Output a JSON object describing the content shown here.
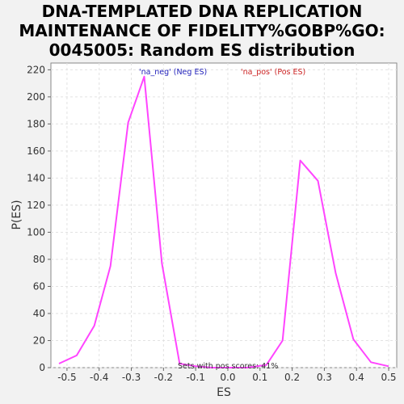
{
  "chart_data": {
    "type": "line",
    "title": "DNA-TEMPLATED DNA REPLICATION\nMAINTENANCE OF FIDELITY%GOBP%GO:\n0045005: Random ES distribution",
    "xlabel": "ES",
    "ylabel": "P(ES)",
    "xlim": [
      -0.55,
      0.525
    ],
    "ylim": [
      0,
      225
    ],
    "xticks": [
      -0.5,
      -0.4,
      -0.3,
      -0.2,
      -0.1,
      0.0,
      0.1,
      0.2,
      0.3,
      0.4,
      0.5
    ],
    "xtick_labels": [
      "-0.5",
      "-0.4",
      "-0.3",
      "-0.2",
      "-0.1",
      "0.0",
      "0.1",
      "0.2",
      "0.3",
      "0.4",
      "0.5"
    ],
    "yticks": [
      0,
      20,
      40,
      60,
      80,
      100,
      120,
      140,
      160,
      180,
      200,
      220
    ],
    "ytick_labels": [
      "0",
      "20",
      "40",
      "60",
      "80",
      "100",
      "120",
      "140",
      "160",
      "180",
      "200",
      "220"
    ],
    "grid": true,
    "series": [
      {
        "name": "",
        "color": "#ff44ff",
        "x": [
          -0.525,
          -0.47,
          -0.415,
          -0.365,
          -0.31,
          -0.26,
          -0.205,
          -0.15,
          -0.1,
          -0.05,
          0.0,
          0.06,
          0.12,
          0.17,
          0.225,
          0.28,
          0.335,
          0.39,
          0.445,
          0.5
        ],
        "y": [
          3,
          9,
          31,
          75,
          181,
          215,
          77,
          3,
          1,
          0,
          0,
          0,
          2,
          20,
          153,
          138,
          70,
          21,
          4,
          1
        ]
      }
    ],
    "legend": [
      {
        "label": "'na_neg' (Neg ES)",
        "color": "#2222bb"
      },
      {
        "label": "'na_pos' (Pos ES)",
        "color": "#cc2222"
      }
    ],
    "legend_placement": "top-center",
    "annotation": "Sets with pos scores: 41%"
  }
}
